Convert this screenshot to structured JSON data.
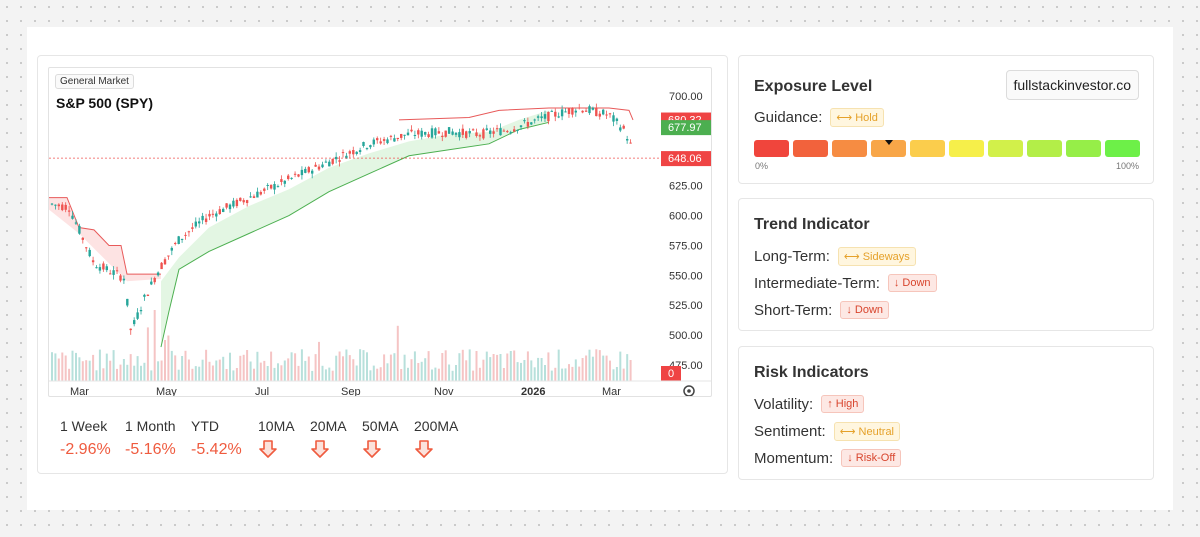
{
  "chart": {
    "tag": "General Market",
    "title": "S&P 500 (SPY)",
    "price_labels": [
      "700.00",
      "675.00",
      "650.00",
      "625.00",
      "600.00",
      "575.00",
      "550.00",
      "525.00",
      "500.00",
      "475.00"
    ],
    "badges": {
      "red": "680.32",
      "green": "677.97",
      "last": "648.06",
      "vol": "0"
    },
    "x_labels": [
      "Mar",
      "May",
      "Jul",
      "Sep",
      "Nov",
      "2026",
      "Mar"
    ]
  },
  "stats": [
    {
      "label": "1 Week",
      "value": "-2.96%"
    },
    {
      "label": "1 Month",
      "value": "-5.16%"
    },
    {
      "label": "YTD",
      "value": "-5.42%"
    },
    {
      "label": "10MA",
      "value": ""
    },
    {
      "label": "20MA",
      "value": ""
    },
    {
      "label": "50MA",
      "value": ""
    },
    {
      "label": "200MA",
      "value": ""
    }
  ],
  "exposure": {
    "title": "Exposure Level",
    "site": "fullstackinvestor.co",
    "guidance_label": "Guidance:",
    "guidance_value": "⟷ Hold",
    "min_label": "0%",
    "max_label": "100%",
    "level_fraction": 0.35,
    "segment_colors": [
      "#f0453c",
      "#f2623c",
      "#f68c42",
      "#f8a648",
      "#fbcd4c",
      "#f6ef4a",
      "#d2f04a",
      "#b3ee48",
      "#96ee48",
      "#6df048"
    ]
  },
  "trend": {
    "title": "Trend Indicator",
    "rows": [
      {
        "label": "Long-Term:",
        "value": "⟷ Sideways",
        "kind": "side"
      },
      {
        "label": "Intermediate-Term:",
        "value": "↓ Down",
        "kind": "down"
      },
      {
        "label": "Short-Term:",
        "value": "↓ Down",
        "kind": "down"
      }
    ]
  },
  "risk": {
    "title": "Risk Indicators",
    "rows": [
      {
        "label": "Volatility:",
        "value": "↑ High",
        "kind": "down"
      },
      {
        "label": "Sentiment:",
        "value": "⟷ Neutral",
        "kind": "side"
      },
      {
        "label": "Momentum:",
        "value": "↓ Risk-Off",
        "kind": "down"
      }
    ]
  },
  "chart_data": {
    "type": "candlestick",
    "title": "S&P 500 (SPY)",
    "ylim": [
      470,
      705
    ],
    "x_labels": [
      "Mar",
      "May",
      "Jul",
      "Sep",
      "Nov",
      "2026",
      "Mar"
    ],
    "last_price": 648.06,
    "price_markers": [
      680.32,
      677.97
    ],
    "close_path": [
      {
        "x": "Mar",
        "y": 610
      },
      {
        "x": "early Apr",
        "y": 562
      },
      {
        "x": "mid Apr",
        "y": 505
      },
      {
        "x": "May",
        "y": 560
      },
      {
        "x": "Jun",
        "y": 598
      },
      {
        "x": "Jul",
        "y": 622
      },
      {
        "x": "Aug",
        "y": 636
      },
      {
        "x": "Sep",
        "y": 655
      },
      {
        "x": "Oct",
        "y": 668
      },
      {
        "x": "Nov",
        "y": 672
      },
      {
        "x": "Dec",
        "y": 684
      },
      {
        "x": "2026",
        "y": 690
      },
      {
        "x": "Feb",
        "y": 685
      },
      {
        "x": "Mar",
        "y": 648
      }
    ],
    "colors": {
      "up": "#26a69a",
      "down": "#ef5350"
    }
  }
}
